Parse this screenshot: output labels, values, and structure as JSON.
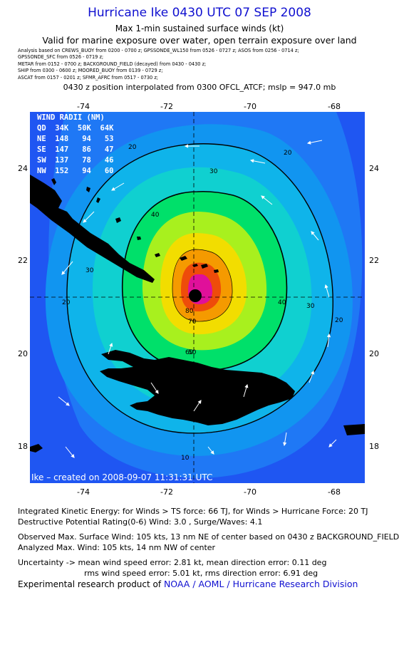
{
  "header": {
    "title": "Hurricane Ike 0430 UTC 07 SEP 2008",
    "subtitle": "Max 1-min sustained surface winds (kt)",
    "validity": "Valid for marine exposure over water, open terrain exposure over land"
  },
  "sources": [
    "Analysis based on   CREWS_BUOY from 0200 - 0700 z;  GPSSONDE_WL150 from 0526 - 0727 z;  ASOS from 0256 - 0714 z;",
    "GPSSONDE_SFC from 0526 - 0719 z;",
    "METAR from 0152 - 0700 z;  BACKGROUND_FIELD (decayed) from 0430 - 0430 z;",
    "SHIP from 0300 - 0600 z;  MOORED_BUOY from 0139 - 0729 z;",
    "ASCAT from 0157 - 0201 z;  SFMR_AFRC from 0517 - 0730 z;"
  ],
  "position_note": "0430 z position interpolated from 0300 OFCL_ATCF; mslp = 947.0 mb",
  "map": {
    "lon_ticks": [
      "-74",
      "-72",
      "-70",
      "-68"
    ],
    "lat_ticks": [
      "24",
      "22",
      "20",
      "18"
    ],
    "lon_range": [
      -75.2,
      -67.3
    ],
    "lat_range": [
      17.2,
      25.2
    ],
    "center": {
      "lon": -71.4,
      "lat": 21.2
    },
    "contour_labels": [
      "10",
      "20",
      "30",
      "40",
      "50",
      "60",
      "70",
      "80"
    ],
    "colors": {
      "ocean_blue": "#1f56f2",
      "ring_10": "#1f78f5",
      "ring_20": "#1195f0",
      "ring_30": "#0fb4ea",
      "ring_40": "#10d0d0",
      "ring_50": "#00e06a",
      "ring_60": "#a8f01e",
      "ring_70": "#f2dd00",
      "ring_80": "#f59a00",
      "ring_90": "#ee4c0a",
      "core": "#e0109a",
      "land": "#000000"
    }
  },
  "wind_radii": {
    "header": "WIND RADII (NM)",
    "columns": "QD  34K  50K  64K",
    "rows": [
      "NE  148   94   53",
      "SE  147   86   47",
      "SW  137   78   46",
      "NW  152   94   60"
    ]
  },
  "credit": "Ike  –  created on 2008-09-07 11:31:31 UTC",
  "stats": {
    "ike": "Integrated Kinetic Energy:  for Winds > TS force: 66 TJ,  for Winds > Hurricane Force: 20 TJ",
    "dpr": "Destructive Potential Rating(0-6)   Wind: 3.0 , Surge/Waves: 4.1",
    "observed": "Observed Max. Surface Wind: 105 kts, 13 nm NE of center based on 0430 z BACKGROUND_FIELD",
    "analyzed": "Analyzed Max. Wind: 105 kts, 14 nm NW of center",
    "uncertainty_1": "Uncertainty -> mean wind speed error: 2.81 kt,   mean direction error: 0.11 deg",
    "uncertainty_2": "rms wind speed error: 5.01 kt,   rms direction error: 6.91 deg"
  },
  "footer": {
    "prefix": "Experimental research product of",
    "org": "NOAA / AOML / Hurricane Research Division"
  }
}
